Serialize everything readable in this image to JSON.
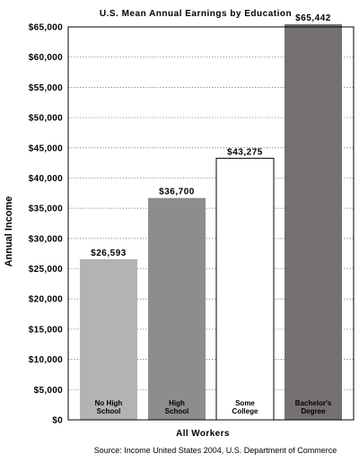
{
  "chart_data": {
    "type": "bar",
    "title": "U.S. Mean Annual Earnings by Education",
    "ylabel": "Annual Income",
    "xlabel": "All Workers",
    "source": "Source: Income United States 2004, U.S. Department of Commerce",
    "ylim": [
      0,
      65000
    ],
    "ytick_step": 5000,
    "ytick_labels": [
      "$0",
      "$5,000",
      "$10,000",
      "$15,000",
      "$20,000",
      "$25,000",
      "$30,000",
      "$35,000",
      "$40,000",
      "$45,000",
      "$50,000",
      "$55,000",
      "$60,000",
      "$65,000"
    ],
    "grid": "horizontal dotted",
    "categories": [
      [
        "No High",
        "School"
      ],
      [
        "High",
        "School"
      ],
      [
        "Some",
        "College"
      ],
      [
        "Bachelor's",
        "Degree"
      ]
    ],
    "values": [
      26593,
      36700,
      43275,
      65442
    ],
    "data_labels": [
      "$26,593",
      "$36,700",
      "$43,275",
      "$65,442"
    ],
    "bar_colors": [
      "#b3b3b3",
      "#8f8c8c",
      "#ffffff",
      "#757170"
    ],
    "bar_label_colors": [
      "#000000",
      "#000000",
      "#000000",
      "#000000"
    ]
  }
}
